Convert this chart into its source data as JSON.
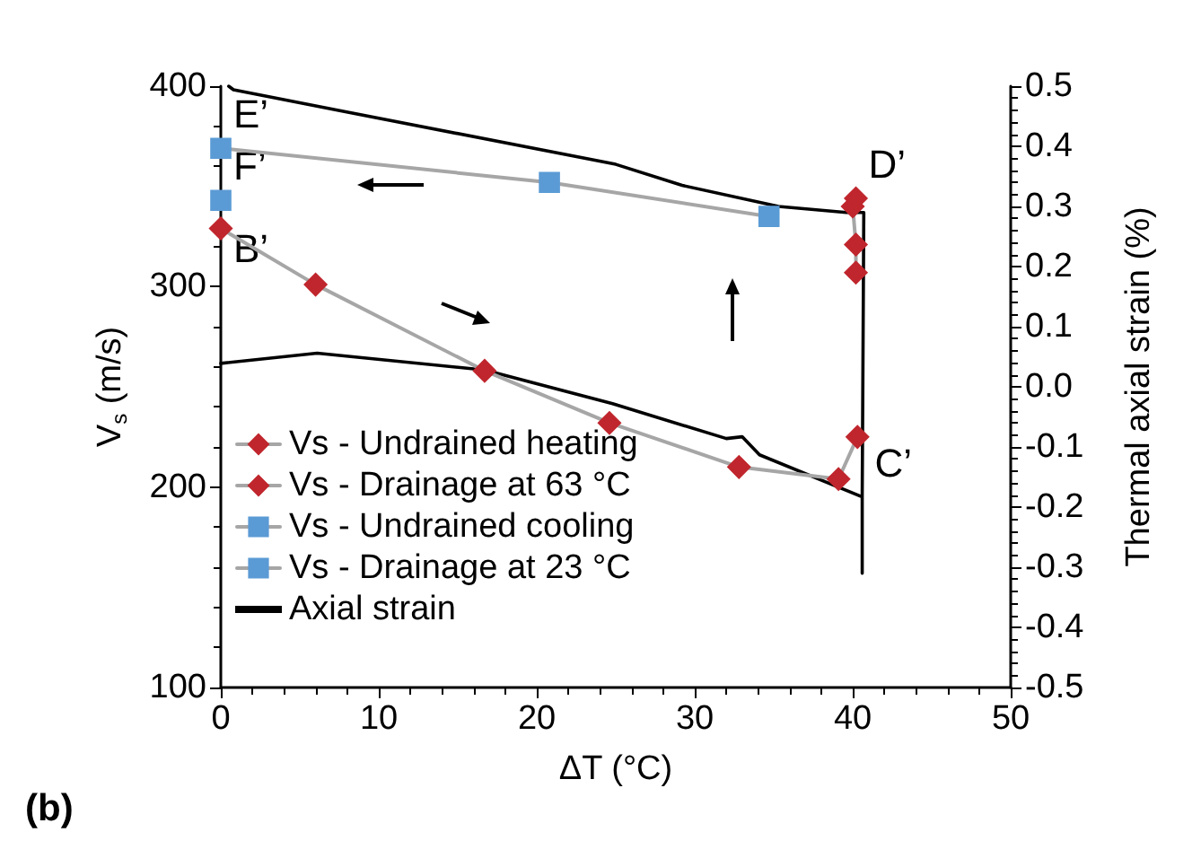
{
  "chart_data": {
    "type": "line",
    "xlabel": "ΔT (°C)",
    "ylabel": "V$_{s}$ (m/s)",
    "y2label": "Thermal axial strain (%)",
    "xlim": [
      0,
      50
    ],
    "xticks": [
      0,
      10,
      20,
      30,
      40,
      50
    ],
    "ylim": [
      100,
      400
    ],
    "yticks": [
      100,
      200,
      300,
      400
    ],
    "y2lim": [
      -0.5,
      0.5
    ],
    "y2ticks": [
      -0.5,
      -0.4,
      -0.3,
      -0.2,
      -0.1,
      {
        "value": 0,
        "label": "0.0"
      },
      0.1,
      0.2,
      0.3,
      0.4,
      0.5
    ],
    "grid": false,
    "legend": "bottom left",
    "series": [
      {
        "name": "Vs - Undrained heating",
        "color": "#c0262d",
        "marker": "diamond",
        "x": [
          0,
          6.0,
          16.7,
          24.6,
          32.8,
          39.1,
          40.3
        ],
        "values": [
          329,
          301,
          258,
          232,
          210,
          204,
          225
        ]
      },
      {
        "name": "Vs - Drainage at 63 °C",
        "color": "#c0262d",
        "marker": "diamond",
        "x": [
          40.2,
          40.2,
          40.0,
          40.2
        ],
        "values": [
          307,
          321,
          340,
          344
        ]
      },
      {
        "name": "Vs - Undrained cooling",
        "color": "#5b9bd5",
        "marker": "square",
        "x": [
          34.7,
          20.8,
          0
        ],
        "values": [
          335,
          352,
          369
        ]
      },
      {
        "name": "Vs - Drainage at 23 °C",
        "color": "#5b9bd5",
        "marker": "square",
        "x": [
          0
        ],
        "values": [
          343
        ]
      },
      {
        "name": "Axial strain",
        "color": "#000000",
        "marker": "none",
        "axis": "y2",
        "x": [
          0,
          6.1,
          16.7,
          24.8,
          32,
          33,
          34.1,
          40.6,
          40.6,
          40.6,
          40.7,
          39.6,
          35.3,
          29.2,
          25,
          7.6,
          0.8,
          0.5
        ],
        "values": [
          0.039,
          0.056,
          0.028,
          -0.028,
          -0.086,
          -0.083,
          -0.113,
          -0.183,
          -0.31,
          -0.183,
          0.29,
          0.29,
          0.3,
          0.335,
          0.37,
          0.459,
          0.494,
          0.5
        ]
      }
    ],
    "annotations": [
      {
        "text": "E’",
        "x": 0,
        "y": 369
      },
      {
        "text": "F’",
        "x": 0,
        "y": 343
      },
      {
        "text": "B’",
        "x": 0,
        "y": 329
      },
      {
        "text": "D’",
        "x": 40.2,
        "y": 344
      },
      {
        "text": "C’",
        "x": 40.6,
        "y": 195
      },
      "(b)"
    ]
  }
}
